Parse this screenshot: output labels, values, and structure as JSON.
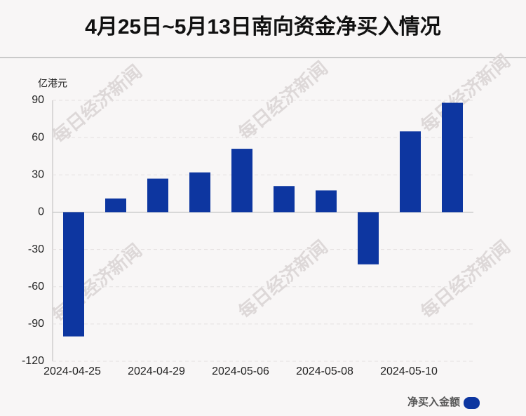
{
  "chart_data": {
    "type": "bar",
    "title": "4月25日~5月13日南向资金净买入情况",
    "y_unit": "亿港元",
    "watermark": "每日经济新闻",
    "categories": [
      "2024-04-25",
      null,
      "2024-04-29",
      null,
      "2024-05-06",
      null,
      "2024-05-08",
      null,
      "2024-05-10",
      null
    ],
    "series": [
      {
        "name": "净买入金额",
        "color": "#0d36a0",
        "values": [
          -100,
          11,
          27,
          32,
          51,
          21,
          17.5,
          -42,
          65,
          88
        ]
      }
    ],
    "ylim": [
      -120,
      90
    ],
    "yticks": [
      -120,
      -90,
      -60,
      -30,
      0,
      30,
      60,
      90
    ],
    "grid": true
  }
}
